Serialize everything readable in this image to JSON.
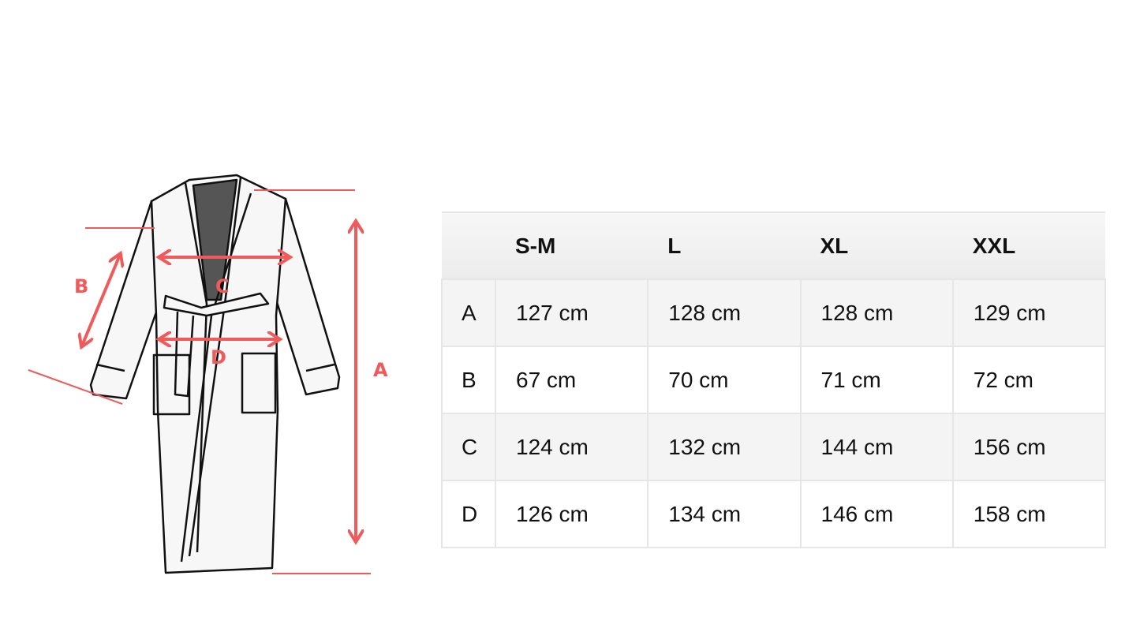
{
  "diagram": {
    "labels": {
      "A": "A",
      "B": "B",
      "C": "C",
      "D": "D"
    },
    "accent_color": "#f05a5a",
    "image": "bathrobe-line-drawing"
  },
  "size_table": {
    "headers": [
      "",
      "S-M",
      "L",
      "XL",
      "XXL"
    ],
    "rows": [
      {
        "label": "A",
        "values": [
          "127 cm",
          "128 cm",
          "128 cm",
          "129 cm"
        ]
      },
      {
        "label": "B",
        "values": [
          "67 cm",
          "70 cm",
          "71 cm",
          "72 cm"
        ]
      },
      {
        "label": "C",
        "values": [
          "124 cm",
          "132 cm",
          "144 cm",
          "156 cm"
        ]
      },
      {
        "label": "D",
        "values": [
          "126 cm",
          "134 cm",
          "146 cm",
          "158 cm"
        ]
      }
    ]
  }
}
